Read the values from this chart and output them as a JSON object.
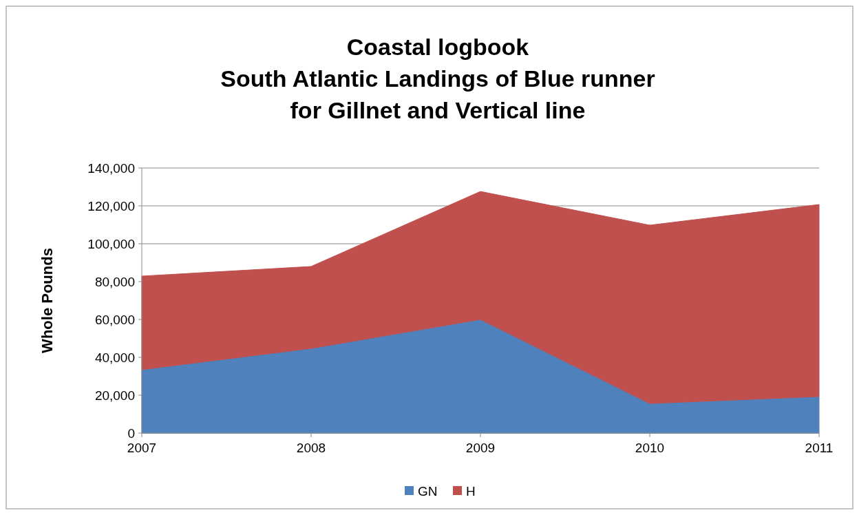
{
  "chart_data": {
    "type": "area",
    "title": "Coastal logbook\nSouth Atlantic Landings of Blue runner\nfor Gillnet and Vertical line",
    "ylabel": "Whole Pounds",
    "categories": [
      "2007",
      "2008",
      "2009",
      "2010",
      "2011"
    ],
    "stacked": true,
    "series": [
      {
        "name": "GN",
        "color": "#4f81bd",
        "values": [
          33500,
          44700,
          60000,
          15600,
          19300
        ]
      },
      {
        "name": "H",
        "color": "#c0504d",
        "values": [
          49400,
          43300,
          67600,
          94200,
          101400
        ]
      }
    ],
    "ylim": [
      0,
      140000
    ],
    "yticks": [
      {
        "value": 0,
        "label": "0"
      },
      {
        "value": 20000,
        "label": "20,000"
      },
      {
        "value": 40000,
        "label": "40,000"
      },
      {
        "value": 60000,
        "label": "60,000"
      },
      {
        "value": 80000,
        "label": "80,000"
      },
      {
        "value": 100000,
        "label": "100,000"
      },
      {
        "value": 120000,
        "label": "120,000"
      },
      {
        "value": 140000,
        "label": "140,000"
      }
    ],
    "grid": "y",
    "legend": "bottom"
  }
}
